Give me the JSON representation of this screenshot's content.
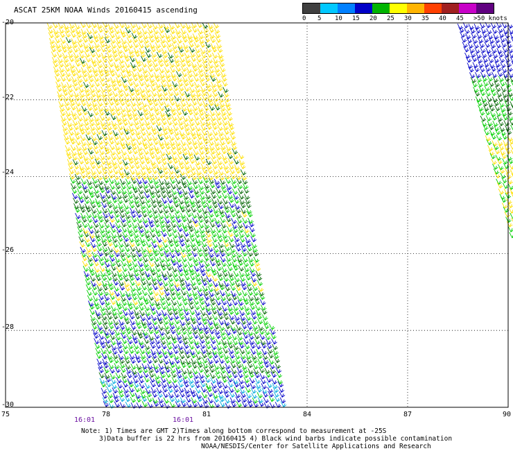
{
  "title": "ASCAT 25KM NOAA Winds 20160415 ascending",
  "legend": {
    "labels": [
      "0",
      "5",
      "10",
      "15",
      "20",
      "25",
      "30",
      "35",
      "40",
      "45",
      ">50 knots"
    ],
    "colors": [
      "#404040",
      "#00c8ff",
      "#0080ff",
      "#0000c8",
      "#00b400",
      "#ffff00",
      "#ffb400",
      "#ff4000",
      "#a02020",
      "#c800c8",
      "#600080"
    ]
  },
  "map": {
    "lat_labels": [
      "-20",
      "-22",
      "-24",
      "-26",
      "-28",
      "-30"
    ],
    "lon_labels": [
      "75",
      "78",
      "81",
      "84",
      "87",
      "90"
    ],
    "time_labels": [
      "16:01",
      "16:01"
    ],
    "lat_range": [
      -30,
      -20
    ],
    "lon_range": [
      75,
      90
    ],
    "barb_colors": {
      "yellow": "#ffe000",
      "green": "#00d000",
      "dark_green": "#006400",
      "blue": "#0000c8",
      "cyan": "#00aadd"
    }
  },
  "footnote": {
    "line1": "Note: 1) Times are GMT 2)Times along bottom correspond to measurement at -25S",
    "line2": "3)Data buffer is 22 hrs from 20160415 4) Black wind barbs indicate possible contamination",
    "line3": "NOAA/NESDIS/Center for Satellite Applications and Research"
  }
}
